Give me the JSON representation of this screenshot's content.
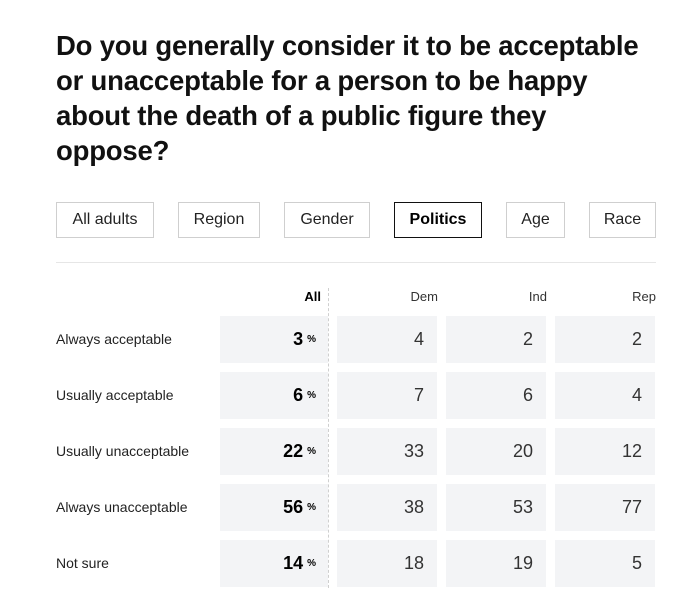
{
  "title": "Do you generally consider it to be acceptable or unacceptable for a person to be happy about the death of a public figure they oppose?",
  "tabs": [
    {
      "label": "All adults"
    },
    {
      "label": "Region"
    },
    {
      "label": "Gender"
    },
    {
      "label": "Politics"
    },
    {
      "label": "Age"
    },
    {
      "label": "Race"
    }
  ],
  "active_tab": "Politics",
  "table": {
    "columns": [
      "All",
      "Dem",
      "Ind",
      "Rep"
    ],
    "percent_symbol": "%",
    "rows": [
      {
        "label": "Always acceptable",
        "all": "3",
        "dem": "4",
        "ind": "2",
        "rep": "2"
      },
      {
        "label": "Usually acceptable",
        "all": "6",
        "dem": "7",
        "ind": "6",
        "rep": "4"
      },
      {
        "label": "Usually unacceptable",
        "all": "22",
        "dem": "33",
        "ind": "20",
        "rep": "12"
      },
      {
        "label": "Always unacceptable",
        "all": "56",
        "dem": "38",
        "ind": "53",
        "rep": "77"
      },
      {
        "label": "Not sure",
        "all": "14",
        "dem": "18",
        "ind": "19",
        "rep": "5"
      }
    ]
  }
}
